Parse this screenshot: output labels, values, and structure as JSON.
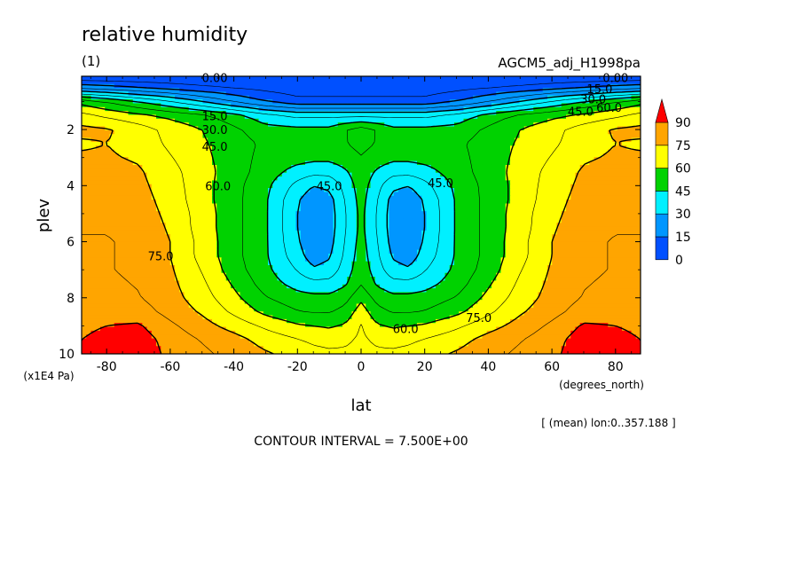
{
  "chart_data": {
    "type": "heatmap",
    "title": "relative humidity",
    "subtitle": "(1)",
    "dataset": "AGCM5_adj_H1998pa",
    "xlabel": "lat",
    "xunit": "(degrees_north)",
    "ylabel": "plev",
    "yunit": "(x1E4 Pa)",
    "xlim": [
      -87.86,
      87.86
    ],
    "ylim": [
      10,
      0.1
    ],
    "xticks": [
      -80,
      -60,
      -40,
      -20,
      0,
      20,
      40,
      60,
      80
    ],
    "yticks": [
      2,
      4,
      6,
      8,
      10
    ],
    "lat": [
      -87.86,
      -80,
      -70,
      -60,
      -50,
      -40,
      -30,
      -20,
      -15,
      -10,
      -5,
      0,
      5,
      10,
      15,
      20,
      30,
      40,
      50,
      60,
      70,
      80,
      87.86
    ],
    "plev": [
      0.1,
      0.5,
      1,
      1.5,
      2,
      2.5,
      3,
      3.5,
      4,
      4.5,
      5,
      5.5,
      6,
      6.5,
      7,
      7.5,
      8,
      8.5,
      9,
      9.5,
      10
    ],
    "rh": [
      [
        0,
        0,
        0,
        0,
        0,
        0,
        0,
        0,
        0,
        0,
        0,
        0,
        0,
        0,
        0,
        0,
        0,
        0,
        0,
        0,
        0,
        0,
        0
      ],
      [
        20,
        18,
        15,
        12,
        9,
        7,
        5,
        3,
        3,
        3,
        3,
        3,
        3,
        3,
        3,
        3,
        5,
        7,
        9,
        12,
        15,
        18,
        20
      ],
      [
        57,
        52,
        45,
        38,
        30,
        22,
        15,
        10,
        10,
        10,
        10,
        10,
        10,
        10,
        10,
        10,
        15,
        22,
        30,
        38,
        45,
        52,
        57
      ],
      [
        70,
        66,
        62,
        58,
        54,
        48,
        40,
        36,
        36,
        36,
        36,
        36,
        36,
        36,
        36,
        36,
        40,
        48,
        54,
        58,
        62,
        66,
        70
      ],
      [
        77,
        76,
        71,
        65,
        60,
        54,
        48,
        47,
        47,
        47,
        52,
        56,
        52,
        47,
        47,
        47,
        48,
        54,
        60,
        65,
        71,
        76,
        77
      ],
      [
        74,
        75,
        72,
        66,
        61,
        56,
        51,
        50,
        50,
        50,
        52,
        55,
        52,
        50,
        50,
        50,
        51,
        56,
        61,
        66,
        72,
        75,
        74
      ],
      [
        76,
        76,
        74,
        68,
        62,
        56,
        50,
        48,
        47,
        47,
        49,
        52,
        49,
        47,
        47,
        48,
        50,
        56,
        62,
        68,
        74,
        76,
        76
      ],
      [
        78,
        78,
        76,
        70,
        63,
        56,
        49,
        42,
        40,
        40,
        44,
        50,
        44,
        40,
        40,
        42,
        49,
        56,
        63,
        70,
        76,
        78,
        78
      ],
      [
        80,
        80,
        77,
        71,
        63,
        55,
        47,
        35,
        30,
        32,
        40,
        49,
        40,
        32,
        30,
        35,
        47,
        55,
        63,
        71,
        77,
        80,
        80
      ],
      [
        81,
        81,
        78,
        72,
        63,
        55,
        46,
        31,
        25,
        27,
        38,
        48,
        38,
        27,
        25,
        31,
        46,
        55,
        63,
        72,
        78,
        81,
        81
      ],
      [
        82,
        82,
        79,
        73,
        64,
        55,
        46,
        30,
        23,
        26,
        37,
        47,
        37,
        26,
        23,
        30,
        46,
        55,
        64,
        73,
        79,
        82,
        82
      ],
      [
        82,
        82,
        80,
        74,
        64,
        55,
        46,
        30,
        23,
        26,
        37,
        47,
        37,
        26,
        23,
        30,
        46,
        55,
        64,
        74,
        80,
        82,
        82
      ],
      [
        83,
        83,
        81,
        75,
        65,
        55,
        46,
        31,
        24,
        27,
        38,
        48,
        38,
        27,
        24,
        31,
        46,
        55,
        65,
        75,
        81,
        83,
        83
      ],
      [
        83,
        83,
        81,
        75,
        65,
        55,
        46,
        33,
        26,
        29,
        39,
        49,
        39,
        29,
        26,
        33,
        46,
        55,
        65,
        75,
        81,
        83,
        83
      ],
      [
        83,
        83,
        81,
        76,
        67,
        56,
        47,
        37,
        31,
        33,
        41,
        50,
        41,
        33,
        31,
        37,
        47,
        56,
        67,
        76,
        81,
        83,
        83
      ],
      [
        84,
        84,
        82,
        77,
        69,
        59,
        49,
        42,
        40,
        40,
        44,
        52,
        44,
        40,
        40,
        42,
        49,
        59,
        69,
        77,
        82,
        84,
        84
      ],
      [
        85,
        85,
        83,
        78,
        71,
        62,
        53,
        48,
        47,
        47,
        50,
        58,
        50,
        47,
        47,
        48,
        53,
        62,
        71,
        78,
        83,
        85,
        85
      ],
      [
        86,
        87,
        86,
        80,
        74,
        66,
        58,
        53,
        52,
        52,
        55,
        64,
        55,
        52,
        52,
        53,
        58,
        66,
        74,
        80,
        86,
        87,
        86
      ],
      [
        88,
        90,
        91,
        84,
        78,
        72,
        66,
        61,
        60,
        59,
        61,
        68,
        61,
        59,
        60,
        61,
        66,
        72,
        78,
        84,
        91,
        90,
        88
      ],
      [
        90,
        93,
        94,
        87,
        82,
        78,
        72,
        68,
        66,
        65,
        66,
        69,
        66,
        65,
        66,
        68,
        72,
        78,
        82,
        87,
        94,
        93,
        90
      ],
      [
        91,
        94,
        95,
        88,
        84,
        80,
        76,
        72,
        70,
        69,
        69,
        70,
        69,
        69,
        70,
        72,
        76,
        80,
        84,
        88,
        95,
        94,
        91
      ]
    ],
    "fill_levels": [
      15,
      30,
      45,
      60,
      75,
      90
    ],
    "line_levels": [
      7.5,
      15,
      22.5,
      30,
      37.5,
      45,
      52.5,
      60,
      67.5,
      75,
      82.5,
      90
    ],
    "colorbar": {
      "labels": [
        "90",
        "75",
        "60",
        "45",
        "30",
        "15",
        "0"
      ],
      "colors": [
        "#0050ff",
        "#0096ff",
        "#00f0ff",
        "#00d200",
        "#ffff00",
        "#ffa500",
        "#ff0000"
      ]
    },
    "contour_labels": [
      {
        "text": "0.00",
        "lat": -46,
        "plev": 0.14
      },
      {
        "text": "0.00",
        "lat": 80,
        "plev": 0.14
      },
      {
        "text": "15.0",
        "lat": -46,
        "plev": 1.5
      },
      {
        "text": "15.0",
        "lat": 75,
        "plev": 0.55
      },
      {
        "text": "30.0",
        "lat": -46,
        "plev": 2.0
      },
      {
        "text": "30.0",
        "lat": 73,
        "plev": 0.9
      },
      {
        "text": "45.0",
        "lat": -46,
        "plev": 2.6
      },
      {
        "text": "45.0",
        "lat": 69,
        "plev": 1.35
      },
      {
        "text": "60.0",
        "lat": 78,
        "plev": 1.2
      },
      {
        "text": "45.0",
        "lat": -10,
        "plev": 4.0
      },
      {
        "text": "45.0",
        "lat": 25,
        "plev": 3.9
      },
      {
        "text": "60.0",
        "lat": -45,
        "plev": 4.0
      },
      {
        "text": "75.0",
        "lat": -63,
        "plev": 6.5
      },
      {
        "text": "60.0",
        "lat": 14,
        "plev": 9.1
      },
      {
        "text": "75.0",
        "lat": 37,
        "plev": 8.7
      }
    ],
    "annotation": "[ (mean) lon:0..357.188 ]",
    "footer": "CONTOUR INTERVAL = 7.500E+00"
  }
}
